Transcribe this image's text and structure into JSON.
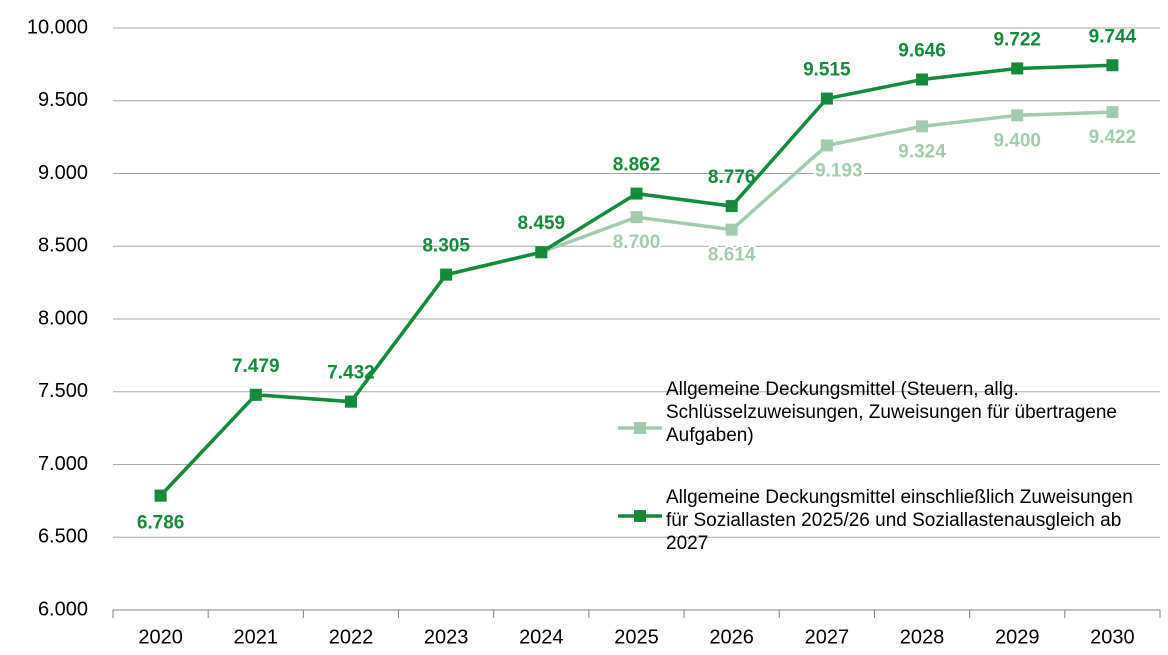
{
  "chart_data": {
    "type": "line",
    "categories": [
      "2020",
      "2021",
      "2022",
      "2023",
      "2024",
      "2025",
      "2026",
      "2027",
      "2028",
      "2029",
      "2030"
    ],
    "series": [
      {
        "name": "Allgemeine Deckungsmittel (Steuern, allg. Schlüsselzuweisungen, Zuweisungen für übertragene Aufgaben)",
        "color": "#a3c9ae",
        "values": [
          6786,
          7479,
          7432,
          8305,
          8459,
          8700,
          8614,
          9193,
          9324,
          9400,
          9422
        ],
        "value_labels": [
          null,
          null,
          null,
          null,
          null,
          "8.700",
          "8.614",
          "9.193",
          "9.324",
          "9.400",
          "9.422"
        ]
      },
      {
        "name": "Allgemeine Deckungsmittel einschließlich Zuweisungen für Soziallasten 2025/26 und Soziallastenausgleich ab 2027",
        "color": "#138a3c",
        "values": [
          6786,
          7479,
          7432,
          8305,
          8459,
          8862,
          8776,
          9515,
          9646,
          9722,
          9744
        ],
        "value_labels": [
          "6.786",
          "7.479",
          "7.432",
          "8.305",
          "8.459",
          "8.862",
          "8.776",
          "9.515",
          "9.646",
          "9.722",
          "9.744"
        ]
      }
    ],
    "ylim": [
      6000,
      10000
    ],
    "yticks": [
      {
        "value": 6000,
        "label": "6.000"
      },
      {
        "value": 6500,
        "label": "6.500"
      },
      {
        "value": 7000,
        "label": "7.000"
      },
      {
        "value": 7500,
        "label": "7.500"
      },
      {
        "value": 8000,
        "label": "8.000"
      },
      {
        "value": 8500,
        "label": "8.500"
      },
      {
        "value": 9000,
        "label": "9.000"
      },
      {
        "value": 9500,
        "label": "9.500"
      },
      {
        "value": 10000,
        "label": "10.000"
      }
    ],
    "grid": true
  }
}
